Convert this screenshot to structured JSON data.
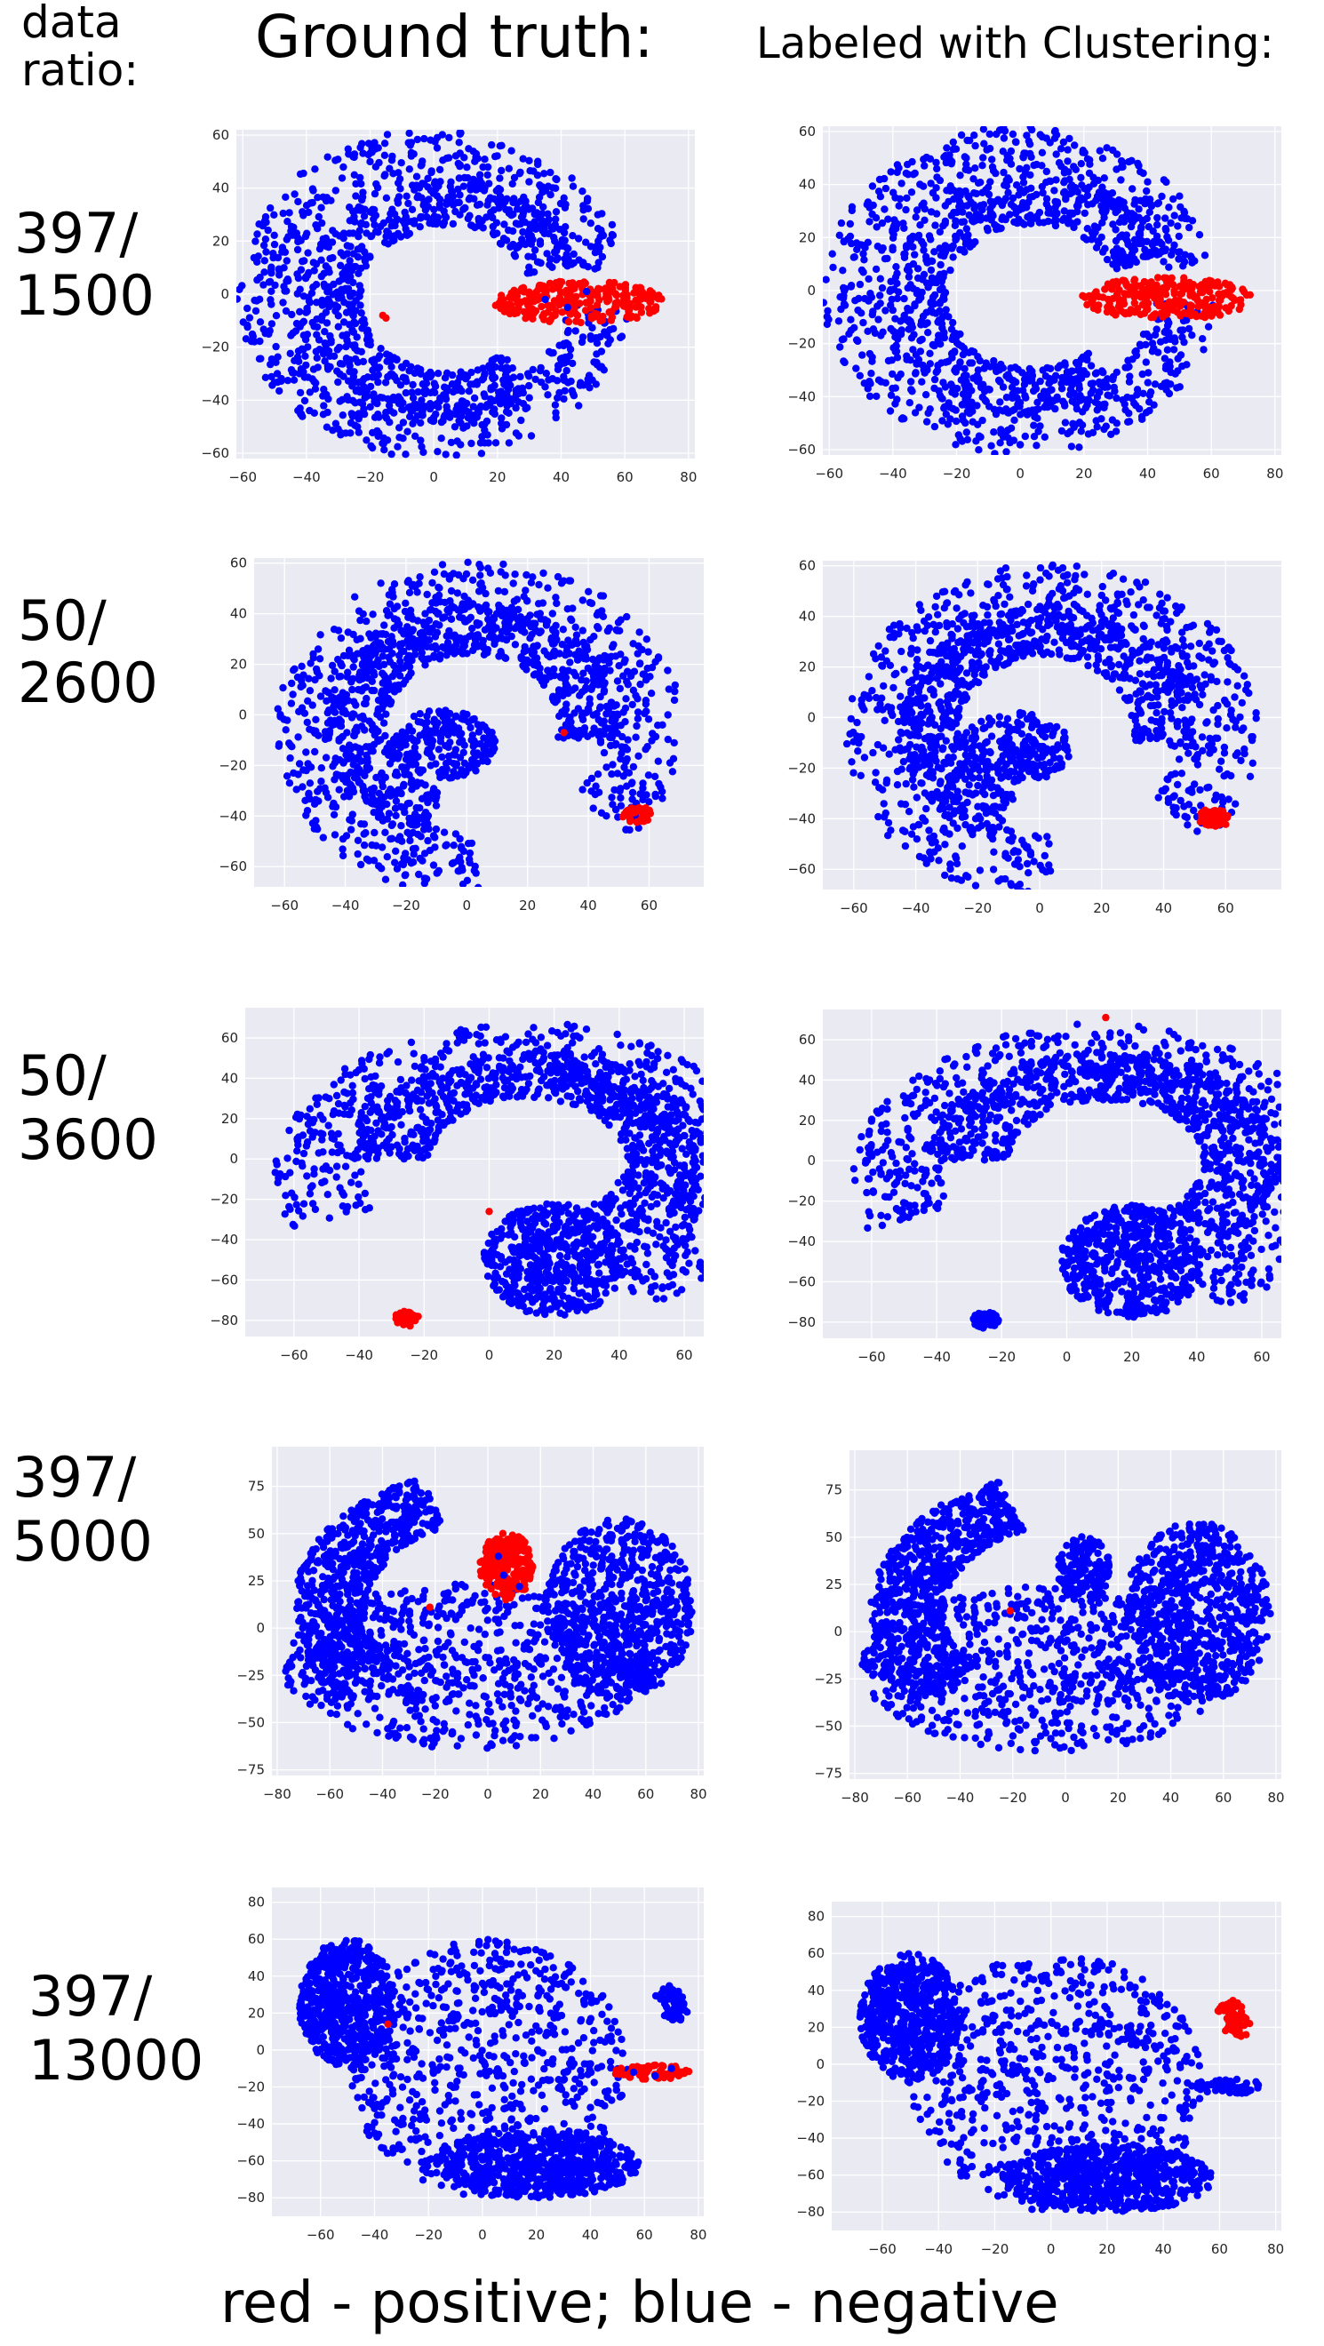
{
  "header": {
    "data_ratio_line1": "data",
    "data_ratio_line2": "ratio:",
    "ground_truth_title": "Ground truth:",
    "clustering_title": "Labeled with Clustering:"
  },
  "rows": [
    {
      "line1": "397/",
      "line2": "1500"
    },
    {
      "line1": "50/",
      "line2": "2600"
    },
    {
      "line1": "50/",
      "line2": "3600"
    },
    {
      "line1": "397/",
      "line2": "5000"
    },
    {
      "line1": "397/",
      "line2": "13000"
    }
  ],
  "footer": {
    "legend_text": "red - positive; blue - negative"
  },
  "colors": {
    "positive": "#ff0000",
    "negative": "#0000ff",
    "plot_background": "#eaeaf2",
    "grid": "#ffffff",
    "tick_text": "#262626"
  },
  "chart_data": [
    {
      "type": "scatter",
      "row": "397/1500",
      "panel": "Ground truth:",
      "xlim": [
        -62,
        82
      ],
      "ylim": [
        -62,
        62
      ],
      "xticks": [
        -60,
        -40,
        -20,
        0,
        20,
        40,
        60,
        80
      ],
      "yticks": [
        -60,
        -40,
        -20,
        0,
        20,
        40,
        60
      ],
      "grid": true,
      "negative_shapes": [
        {
          "kind": "arc",
          "cx": 0,
          "cy": 0,
          "r": 52,
          "thick": 10,
          "start": 10,
          "end": 355
        },
        {
          "kind": "arc",
          "cx": 4,
          "cy": -2,
          "r": 36,
          "thick": 9,
          "start": 20,
          "end": 310
        }
      ],
      "positive_shapes": [
        {
          "kind": "ellipse",
          "cx": 46,
          "cy": -3,
          "rx": 27,
          "ry": 8
        }
      ],
      "extra_positive": [
        [
          -16,
          -8
        ],
        [
          -15,
          -9
        ]
      ],
      "extra_negative": [
        [
          35,
          -2
        ],
        [
          48,
          1
        ],
        [
          42,
          -5
        ]
      ]
    },
    {
      "type": "scatter",
      "row": "397/1500",
      "panel": "Labeled with Clustering:",
      "xlim": [
        -62,
        82
      ],
      "ylim": [
        -62,
        62
      ],
      "xticks": [
        -60,
        -40,
        -20,
        0,
        20,
        40,
        60,
        80
      ],
      "yticks": [
        -60,
        -40,
        -20,
        0,
        20,
        40,
        60
      ],
      "grid": true,
      "negative_shapes": [
        {
          "kind": "arc",
          "cx": 0,
          "cy": 0,
          "r": 52,
          "thick": 10,
          "start": 10,
          "end": 355
        },
        {
          "kind": "arc",
          "cx": 4,
          "cy": -2,
          "r": 36,
          "thick": 9,
          "start": 20,
          "end": 310
        }
      ],
      "positive_shapes": [
        {
          "kind": "ellipse",
          "cx": 46,
          "cy": -3,
          "rx": 27,
          "ry": 8
        }
      ],
      "extra_positive": [],
      "extra_negative": []
    },
    {
      "type": "scatter",
      "row": "50/2600",
      "panel": "Ground truth:",
      "xlim": [
        -70,
        78
      ],
      "ylim": [
        -68,
        62
      ],
      "xticks": [
        -60,
        -40,
        -20,
        0,
        20,
        40,
        60
      ],
      "yticks": [
        -60,
        -40,
        -20,
        0,
        20,
        40,
        60
      ],
      "grid": true,
      "negative_shapes": [
        {
          "kind": "arc",
          "cx": 4,
          "cy": -6,
          "r": 54,
          "thick": 13,
          "start": -40,
          "end": 270
        },
        {
          "kind": "arc",
          "cx": 2,
          "cy": -4,
          "r": 38,
          "thick": 10,
          "start": -10,
          "end": 250
        },
        {
          "kind": "ellipse",
          "cx": -8,
          "cy": -12,
          "rx": 18,
          "ry": 14
        }
      ],
      "positive_shapes": [
        {
          "kind": "ellipse",
          "cx": 56,
          "cy": -40,
          "rx": 5,
          "ry": 4
        }
      ],
      "extra_positive": [
        [
          32,
          -7
        ]
      ],
      "extra_negative": []
    },
    {
      "type": "scatter",
      "row": "50/2600",
      "panel": "Labeled with Clustering:",
      "xlim": [
        -70,
        78
      ],
      "ylim": [
        -68,
        62
      ],
      "xticks": [
        -60,
        -40,
        -20,
        0,
        20,
        40,
        60
      ],
      "yticks": [
        -60,
        -40,
        -20,
        0,
        20,
        40,
        60
      ],
      "grid": true,
      "negative_shapes": [
        {
          "kind": "arc",
          "cx": 4,
          "cy": -6,
          "r": 54,
          "thick": 13,
          "start": -40,
          "end": 270
        },
        {
          "kind": "arc",
          "cx": 2,
          "cy": -4,
          "r": 38,
          "thick": 10,
          "start": -10,
          "end": 250
        },
        {
          "kind": "ellipse",
          "cx": -8,
          "cy": -12,
          "rx": 18,
          "ry": 14
        }
      ],
      "positive_shapes": [
        {
          "kind": "ellipse",
          "cx": 56,
          "cy": -40,
          "rx": 5,
          "ry": 4
        }
      ],
      "extra_positive": [],
      "extra_negative": []
    },
    {
      "type": "scatter",
      "row": "50/3600",
      "panel": "Ground truth:",
      "xlim": [
        -75,
        66
      ],
      "ylim": [
        -88,
        75
      ],
      "xticks": [
        -60,
        -40,
        -20,
        0,
        20,
        40,
        60
      ],
      "yticks": [
        -80,
        -60,
        -40,
        -20,
        0,
        20,
        40,
        60
      ],
      "grid": true,
      "negative_shapes": [
        {
          "kind": "arc",
          "cx": 10,
          "cy": -8,
          "r": 62,
          "thick": 14,
          "start": -60,
          "end": 200
        },
        {
          "kind": "arc",
          "cx": 12,
          "cy": 0,
          "r": 42,
          "thick": 12,
          "start": -50,
          "end": 180
        },
        {
          "kind": "ellipse",
          "cx": 20,
          "cy": -50,
          "rx": 22,
          "ry": 28
        }
      ],
      "positive_shapes": [
        {
          "kind": "ellipse",
          "cx": -25,
          "cy": -79,
          "rx": 4,
          "ry": 4
        }
      ],
      "extra_positive": [
        [
          0,
          -26
        ]
      ],
      "extra_negative": []
    },
    {
      "type": "scatter",
      "row": "50/3600",
      "panel": "Labeled with Clustering:",
      "xlim": [
        -75,
        66
      ],
      "ylim": [
        -88,
        75
      ],
      "xticks": [
        -60,
        -40,
        -20,
        0,
        20,
        40,
        60
      ],
      "yticks": [
        -80,
        -60,
        -40,
        -20,
        0,
        20,
        40,
        60
      ],
      "grid": true,
      "negative_shapes": [
        {
          "kind": "arc",
          "cx": 10,
          "cy": -8,
          "r": 62,
          "thick": 14,
          "start": -60,
          "end": 200
        },
        {
          "kind": "arc",
          "cx": 12,
          "cy": 0,
          "r": 42,
          "thick": 12,
          "start": -50,
          "end": 180
        },
        {
          "kind": "ellipse",
          "cx": 20,
          "cy": -50,
          "rx": 22,
          "ry": 28
        },
        {
          "kind": "ellipse",
          "cx": -25,
          "cy": -79,
          "rx": 4,
          "ry": 4
        }
      ],
      "positive_shapes": [],
      "extra_positive": [
        [
          12,
          71
        ]
      ],
      "extra_negative": []
    },
    {
      "type": "scatter",
      "row": "397/5000",
      "panel": "Ground truth:",
      "xlim": [
        -82,
        82
      ],
      "ylim": [
        -78,
        96
      ],
      "xticks": [
        -80,
        -60,
        -40,
        -20,
        0,
        20,
        40,
        60,
        80
      ],
      "yticks": [
        -75,
        -50,
        -25,
        0,
        25,
        50,
        75
      ],
      "grid": true,
      "negative_shapes": [
        {
          "kind": "ellipse",
          "cx": -8,
          "cy": -20,
          "rx": 70,
          "ry": 44
        },
        {
          "kind": "ellipse",
          "cx": 50,
          "cy": 10,
          "rx": 28,
          "ry": 48
        },
        {
          "kind": "arc",
          "cx": 0,
          "cy": 10,
          "r": 60,
          "thick": 14,
          "start": 110,
          "end": 220
        }
      ],
      "positive_shapes": [
        {
          "kind": "ellipse",
          "cx": 7,
          "cy": 33,
          "rx": 10,
          "ry": 18
        }
      ],
      "extra_positive": [
        [
          -22,
          11
        ]
      ],
      "extra_negative": [
        [
          6,
          28
        ],
        [
          12,
          22
        ],
        [
          4,
          38
        ]
      ]
    },
    {
      "type": "scatter",
      "row": "397/5000",
      "panel": "Labeled with Clustering:",
      "xlim": [
        -82,
        82
      ],
      "ylim": [
        -78,
        96
      ],
      "xticks": [
        -80,
        -60,
        -40,
        -20,
        0,
        20,
        40,
        60,
        80
      ],
      "yticks": [
        -75,
        -50,
        -25,
        0,
        25,
        50,
        75
      ],
      "grid": true,
      "negative_shapes": [
        {
          "kind": "ellipse",
          "cx": -8,
          "cy": -20,
          "rx": 70,
          "ry": 44
        },
        {
          "kind": "ellipse",
          "cx": 50,
          "cy": 10,
          "rx": 28,
          "ry": 48
        },
        {
          "kind": "arc",
          "cx": 0,
          "cy": 10,
          "r": 60,
          "thick": 14,
          "start": 110,
          "end": 220
        },
        {
          "kind": "ellipse",
          "cx": 7,
          "cy": 33,
          "rx": 10,
          "ry": 18
        }
      ],
      "positive_shapes": [],
      "extra_positive": [
        [
          -21,
          11
        ]
      ],
      "extra_negative": []
    },
    {
      "type": "scatter",
      "row": "397/13000",
      "panel": "Ground truth:",
      "xlim": [
        -78,
        82
      ],
      "ylim": [
        -90,
        88
      ],
      "xticks": [
        -60,
        -40,
        -20,
        0,
        20,
        40,
        60,
        80
      ],
      "yticks": [
        -80,
        -60,
        -40,
        -20,
        0,
        20,
        40,
        60,
        80
      ],
      "grid": true,
      "negative_shapes": [
        {
          "kind": "ellipse",
          "cx": 2,
          "cy": -10,
          "rx": 52,
          "ry": 70
        },
        {
          "kind": "ellipse",
          "cx": -50,
          "cy": 25,
          "rx": 18,
          "ry": 35
        },
        {
          "kind": "ellipse",
          "cx": 20,
          "cy": -62,
          "rx": 38,
          "ry": 18
        },
        {
          "kind": "arc",
          "cx": 60,
          "cy": 22,
          "r": 12,
          "thick": 4,
          "start": -30,
          "end": 60
        }
      ],
      "positive_shapes": [
        {
          "kind": "ellipse",
          "cx": 63,
          "cy": -12,
          "rx": 14,
          "ry": 4
        }
      ],
      "extra_positive": [
        [
          -35,
          14
        ]
      ],
      "extra_negative": [
        [
          56,
          -12
        ],
        [
          64,
          -14
        ],
        [
          70,
          -10
        ]
      ]
    },
    {
      "type": "scatter",
      "row": "397/13000",
      "panel": "Labeled with Clustering:",
      "xlim": [
        -78,
        82
      ],
      "ylim": [
        -90,
        88
      ],
      "xticks": [
        -60,
        -40,
        -20,
        0,
        20,
        40,
        60,
        80
      ],
      "yticks": [
        -80,
        -60,
        -40,
        -20,
        0,
        20,
        40,
        60,
        80
      ],
      "grid": true,
      "negative_shapes": [
        {
          "kind": "ellipse",
          "cx": 2,
          "cy": -10,
          "rx": 52,
          "ry": 70
        },
        {
          "kind": "ellipse",
          "cx": -50,
          "cy": 25,
          "rx": 18,
          "ry": 35
        },
        {
          "kind": "ellipse",
          "cx": 20,
          "cy": -62,
          "rx": 38,
          "ry": 18
        },
        {
          "kind": "ellipse",
          "cx": 63,
          "cy": -12,
          "rx": 14,
          "ry": 4
        }
      ],
      "positive_shapes": [
        {
          "kind": "arc",
          "cx": 55,
          "cy": 22,
          "r": 12,
          "thick": 4,
          "start": -30,
          "end": 60
        }
      ],
      "extra_positive": [],
      "extra_negative": []
    }
  ]
}
